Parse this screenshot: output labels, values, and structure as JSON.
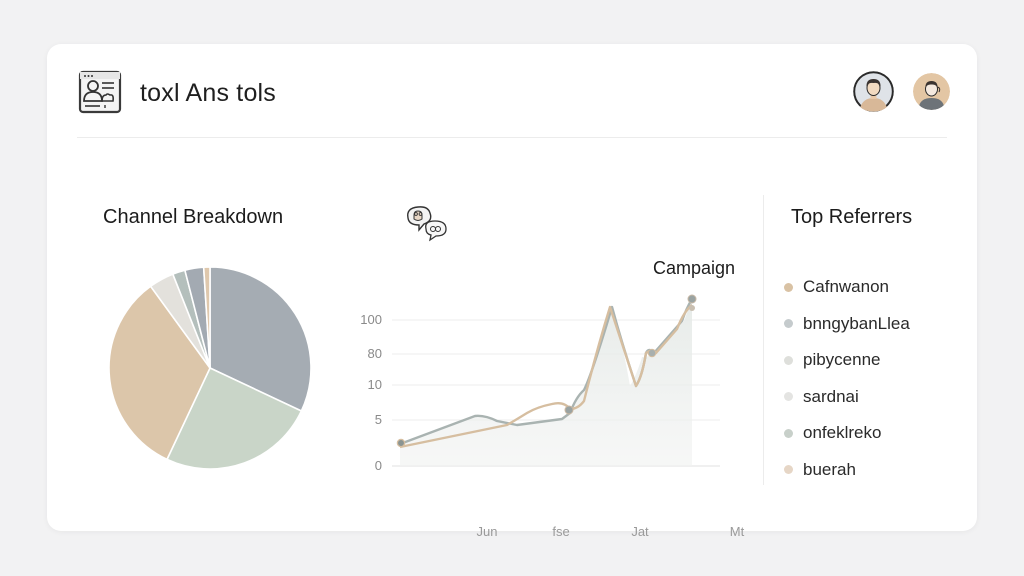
{
  "header": {
    "app_icon": "profile-card-icon",
    "title": "toxl Ans tols",
    "avatars": [
      {
        "name": "user-avatar-primary",
        "skin": "#e9c9a8",
        "bg": "#dfe3e8",
        "shirt": "#d8b898",
        "hair": "#3a3330"
      },
      {
        "name": "user-avatar-secondary",
        "skin": "#f4e9df",
        "bg": "#e3c6a4",
        "shirt": "#6d7378",
        "hair": "#3a3330"
      }
    ]
  },
  "channel_breakdown": {
    "title": "Channel Breakdown"
  },
  "trend_chart": {
    "icon": "chat-bubbles-icon",
    "annotation": "Campaign",
    "y_ticks": [
      "100",
      "80",
      "10",
      "5",
      "0"
    ],
    "x_ticks": [
      "Jun",
      "fse",
      "Jat",
      "Mt"
    ]
  },
  "top_referrers": {
    "title": "Top Referrers",
    "items": [
      {
        "label": "Cafnwanon",
        "color": "#d9c2a4"
      },
      {
        "label": "bnngybanLlea",
        "color": "#c5cbcd"
      },
      {
        "label": "pibycenne",
        "color": "#dedfdb"
      },
      {
        "label": "sardnai",
        "color": "#e4e4e2"
      },
      {
        "label": "onfeklreko",
        "color": "#c8d0ca"
      },
      {
        "label": "buerah",
        "color": "#e6d6c6"
      }
    ]
  },
  "colors": {
    "page_bg": "#f2f2f3",
    "card_bg": "#ffffff",
    "tan": "#dcc6aa",
    "slate": "#a5acb3",
    "sage": "#c9d5c8",
    "light_gray": "#e3e1dc",
    "line_gray": "#a9b3b1",
    "line_tan": "#d6bea0"
  },
  "chart_data": [
    {
      "type": "pie",
      "title": "Channel Breakdown",
      "categories": [
        "Slate",
        "Sage",
        "Tan",
        "Light Gray",
        "Gray-Green",
        "Slate Small",
        "Tan Small"
      ],
      "values": [
        32,
        25,
        33,
        4,
        2,
        3,
        1
      ],
      "colors": [
        "#a5acb3",
        "#c9d5c8",
        "#dcc6aa",
        "#e3e1dc",
        "#b4bfbc",
        "#a3aab2",
        "#dfc8ad"
      ]
    },
    {
      "type": "line",
      "title": "",
      "annotation": "Campaign",
      "x": [
        "Jun",
        "fse",
        "Jat",
        "Mt"
      ],
      "y_ticks": [
        0,
        5,
        10,
        80,
        100
      ],
      "series": [
        {
          "name": "gray",
          "color": "#a9b3b1",
          "points": [
            [
              0,
              2
            ],
            [
              0.2,
              6
            ],
            [
              0.28,
              5.2
            ],
            [
              0.45,
              7
            ],
            [
              0.56,
              14
            ],
            [
              0.62,
              120
            ],
            [
              0.72,
              18
            ],
            [
              0.77,
              40
            ],
            [
              0.9,
              70
            ],
            [
              0.93,
              92
            ]
          ]
        },
        {
          "name": "tan",
          "color": "#d6bea0",
          "points": [
            [
              0,
              1.5
            ],
            [
              0.32,
              4
            ],
            [
              0.46,
              6.5
            ],
            [
              0.56,
              9
            ],
            [
              0.62,
              120
            ],
            [
              0.72,
              18
            ],
            [
              0.76,
              42
            ],
            [
              0.9,
              80
            ],
            [
              0.93,
              90
            ]
          ]
        }
      ]
    }
  ]
}
